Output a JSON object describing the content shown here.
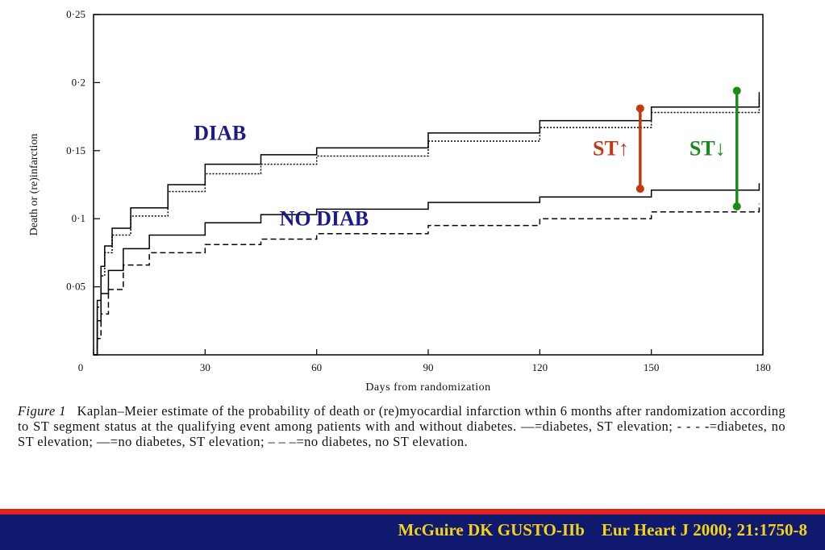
{
  "chart_data": {
    "type": "line",
    "xlabel": "Days from randomization",
    "ylabel": "Death or (re)infarction",
    "xlim": [
      0,
      180
    ],
    "ylim": [
      0,
      0.25
    ],
    "x_ticks": [
      "0",
      "30",
      "60",
      "90",
      "120",
      "150",
      "180"
    ],
    "y_ticks": [
      "0·05",
      "0·1",
      "0·15",
      "0·2",
      "0·25"
    ],
    "grid": false,
    "series": [
      {
        "name": "",
        "style": "solid",
        "color": "#000000",
        "points": [
          [
            0,
            0
          ],
          [
            1,
            0.04
          ],
          [
            2,
            0.065
          ],
          [
            3,
            0.08
          ],
          [
            5,
            0.093
          ],
          [
            10,
            0.108
          ],
          [
            20,
            0.125
          ],
          [
            30,
            0.14
          ],
          [
            45,
            0.147
          ],
          [
            60,
            0.152
          ],
          [
            90,
            0.163
          ],
          [
            120,
            0.172
          ],
          [
            150,
            0.182
          ],
          [
            179,
            0.193
          ]
        ]
      },
      {
        "name": "",
        "style": "dotted",
        "color": "#000000",
        "points": [
          [
            0,
            0
          ],
          [
            1,
            0.035
          ],
          [
            2,
            0.058
          ],
          [
            3,
            0.075
          ],
          [
            5,
            0.088
          ],
          [
            10,
            0.102
          ],
          [
            20,
            0.12
          ],
          [
            30,
            0.133
          ],
          [
            45,
            0.14
          ],
          [
            60,
            0.146
          ],
          [
            90,
            0.157
          ],
          [
            120,
            0.167
          ],
          [
            150,
            0.178
          ],
          [
            179,
            0.188
          ]
        ]
      },
      {
        "name": "",
        "style": "solid2",
        "color": "#000000",
        "points": [
          [
            0,
            0
          ],
          [
            1,
            0.025
          ],
          [
            2,
            0.045
          ],
          [
            4,
            0.062
          ],
          [
            8,
            0.078
          ],
          [
            15,
            0.088
          ],
          [
            30,
            0.097
          ],
          [
            45,
            0.103
          ],
          [
            60,
            0.107
          ],
          [
            90,
            0.112
          ],
          [
            120,
            0.116
          ],
          [
            150,
            0.121
          ],
          [
            179,
            0.126
          ]
        ]
      },
      {
        "name": "",
        "style": "dashed",
        "color": "#000000",
        "points": [
          [
            0,
            0
          ],
          [
            1,
            0.012
          ],
          [
            2,
            0.03
          ],
          [
            4,
            0.048
          ],
          [
            8,
            0.066
          ],
          [
            15,
            0.075
          ],
          [
            30,
            0.081
          ],
          [
            45,
            0.085
          ],
          [
            60,
            0.089
          ],
          [
            90,
            0.095
          ],
          [
            120,
            0.1
          ],
          [
            150,
            0.105
          ],
          [
            179,
            0.111
          ]
        ]
      }
    ],
    "annotations": {
      "diab": {
        "text": "DIAB",
        "color": "#1a1a8c",
        "x": 34,
        "y": 0.158
      },
      "nodiab": {
        "text": "NO DIAB",
        "color": "#1a1a8c",
        "x": 62,
        "y": 0.095
      },
      "st_up": {
        "text": "ST↑",
        "color": "#c03a12",
        "x": 147,
        "y1": 0.122,
        "y2": 0.181
      },
      "st_down": {
        "text": "ST↓",
        "color": "#1a8c1a",
        "x": 173,
        "y1": 0.109,
        "y2": 0.194
      }
    }
  },
  "caption": {
    "figure_label": "Figure 1",
    "text": "Kaplan–Meier estimate of the probability of death or (re)myocardial infarction wthin 6 months after randomization according to ST segment status at the qualifying event among patients with and without diabetes. —=diabetes, ST elevation; - - - -=diabetes, no ST elevation; —=no diabetes, ST elevation; – – –=no diabetes, no ST elevation."
  },
  "footer": {
    "citation": "McGuire DK GUSTO-IIb    Eur Heart J 2000; 21:1750-8"
  },
  "colors": {
    "footer_bg": "#0f1a6e",
    "footer_text": "#f5d31a",
    "red_rule": "#e0231b"
  }
}
